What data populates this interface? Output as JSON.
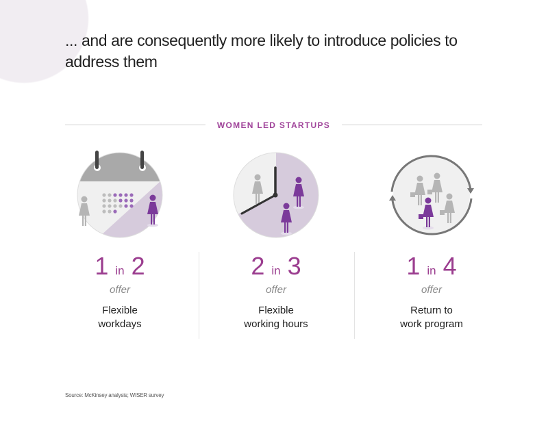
{
  "title": "... and are consequently more likely to introduce policies to address them",
  "section_header": "WOMEN LED STARTUPS",
  "colors": {
    "accent": "#9b3d8f",
    "figure_purple": "#7b3a9a",
    "figure_gray": "#b5b5b5",
    "light_purple": "#d6cbdc"
  },
  "stats": [
    {
      "icon": "calendar-icon",
      "num": "1",
      "in": "in",
      "den": "2",
      "offer": "offer",
      "label1": "Flexible",
      "label2": "workdays"
    },
    {
      "icon": "clock-icon",
      "num": "2",
      "in": "in",
      "den": "3",
      "offer": "offer",
      "label1": "Flexible",
      "label2": "working hours"
    },
    {
      "icon": "return-cycle-icon",
      "num": "1",
      "in": "in",
      "den": "4",
      "offer": "offer",
      "label1": "Return to",
      "label2": "work program"
    }
  ],
  "source": "Source: McKinsey analysis; WISER survey"
}
